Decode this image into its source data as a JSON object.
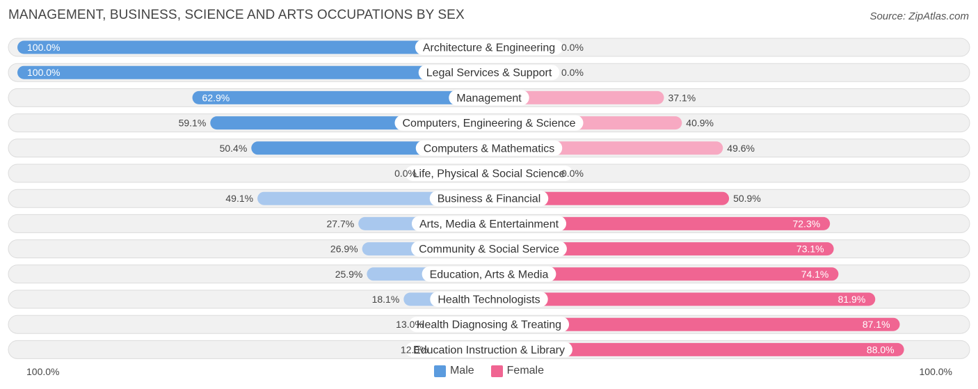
{
  "chart_data": {
    "type": "bar",
    "orientation": "horizontal-diverging",
    "title": "MANAGEMENT, BUSINESS, SCIENCE AND ARTS OCCUPATIONS BY SEX",
    "source": "Source: ZipAtlas.com",
    "categories": [
      "Architecture & Engineering",
      "Legal Services & Support",
      "Management",
      "Computers, Engineering & Science",
      "Computers & Mathematics",
      "Life, Physical & Social Science",
      "Business & Financial",
      "Arts, Media & Entertainment",
      "Community & Social Service",
      "Education, Arts & Media",
      "Health Technologists",
      "Health Diagnosing & Treating",
      "Education Instruction & Library"
    ],
    "series": [
      {
        "name": "Male",
        "values": [
          100.0,
          100.0,
          62.9,
          59.1,
          50.4,
          0.0,
          49.1,
          27.7,
          26.9,
          25.9,
          18.1,
          13.0,
          12.0
        ],
        "labels": [
          "100.0%",
          "100.0%",
          "62.9%",
          "59.1%",
          "50.4%",
          "0.0%",
          "49.1%",
          "27.7%",
          "26.9%",
          "25.9%",
          "18.1%",
          "13.0%",
          "12.0%"
        ]
      },
      {
        "name": "Female",
        "values": [
          0.0,
          0.0,
          37.1,
          40.9,
          49.6,
          0.0,
          50.9,
          72.3,
          73.1,
          74.1,
          81.9,
          87.1,
          88.0
        ],
        "labels": [
          "0.0%",
          "0.0%",
          "37.1%",
          "40.9%",
          "49.6%",
          "0.0%",
          "50.9%",
          "72.3%",
          "73.1%",
          "74.1%",
          "81.9%",
          "87.1%",
          "88.0%"
        ]
      }
    ],
    "axis": {
      "left_label": "100.0%",
      "right_label": "100.0%",
      "range": [
        0,
        100
      ]
    },
    "legend": [
      {
        "name": "Male",
        "color": "#5b9bde"
      },
      {
        "name": "Female",
        "color": "#f06592"
      }
    ],
    "colors": {
      "male_strong": "#5b9bde",
      "male_light": "#a9c8ee",
      "female_strong": "#f06592",
      "female_light": "#f7a9c2",
      "row_bg": "#f1f1f1",
      "row_border": "#dcdcdc"
    }
  }
}
